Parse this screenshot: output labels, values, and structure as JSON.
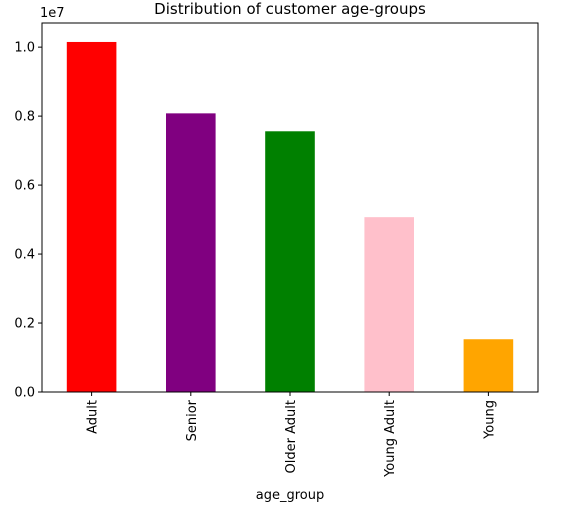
{
  "chart_data": {
    "type": "bar",
    "title": "Distribution of customer age-groups",
    "xlabel": "age_group",
    "ylabel": "",
    "y_offset_text": "1e7",
    "categories": [
      "Adult",
      "Senior",
      "Older Adult",
      "Young Adult",
      "Young"
    ],
    "values": [
      10150000,
      8080000,
      7560000,
      5070000,
      1530000
    ],
    "colors": [
      "#ff0000",
      "#800080",
      "#008000",
      "#ffc0cb",
      "#ffa500"
    ],
    "ylim": [
      0,
      10700000
    ],
    "yticks": [
      0,
      2000000,
      4000000,
      6000000,
      8000000,
      10000000
    ],
    "ytick_labels": [
      "0.0",
      "0.2",
      "0.4",
      "0.6",
      "0.8",
      "1.0"
    ],
    "grid": false,
    "legend": "none"
  }
}
